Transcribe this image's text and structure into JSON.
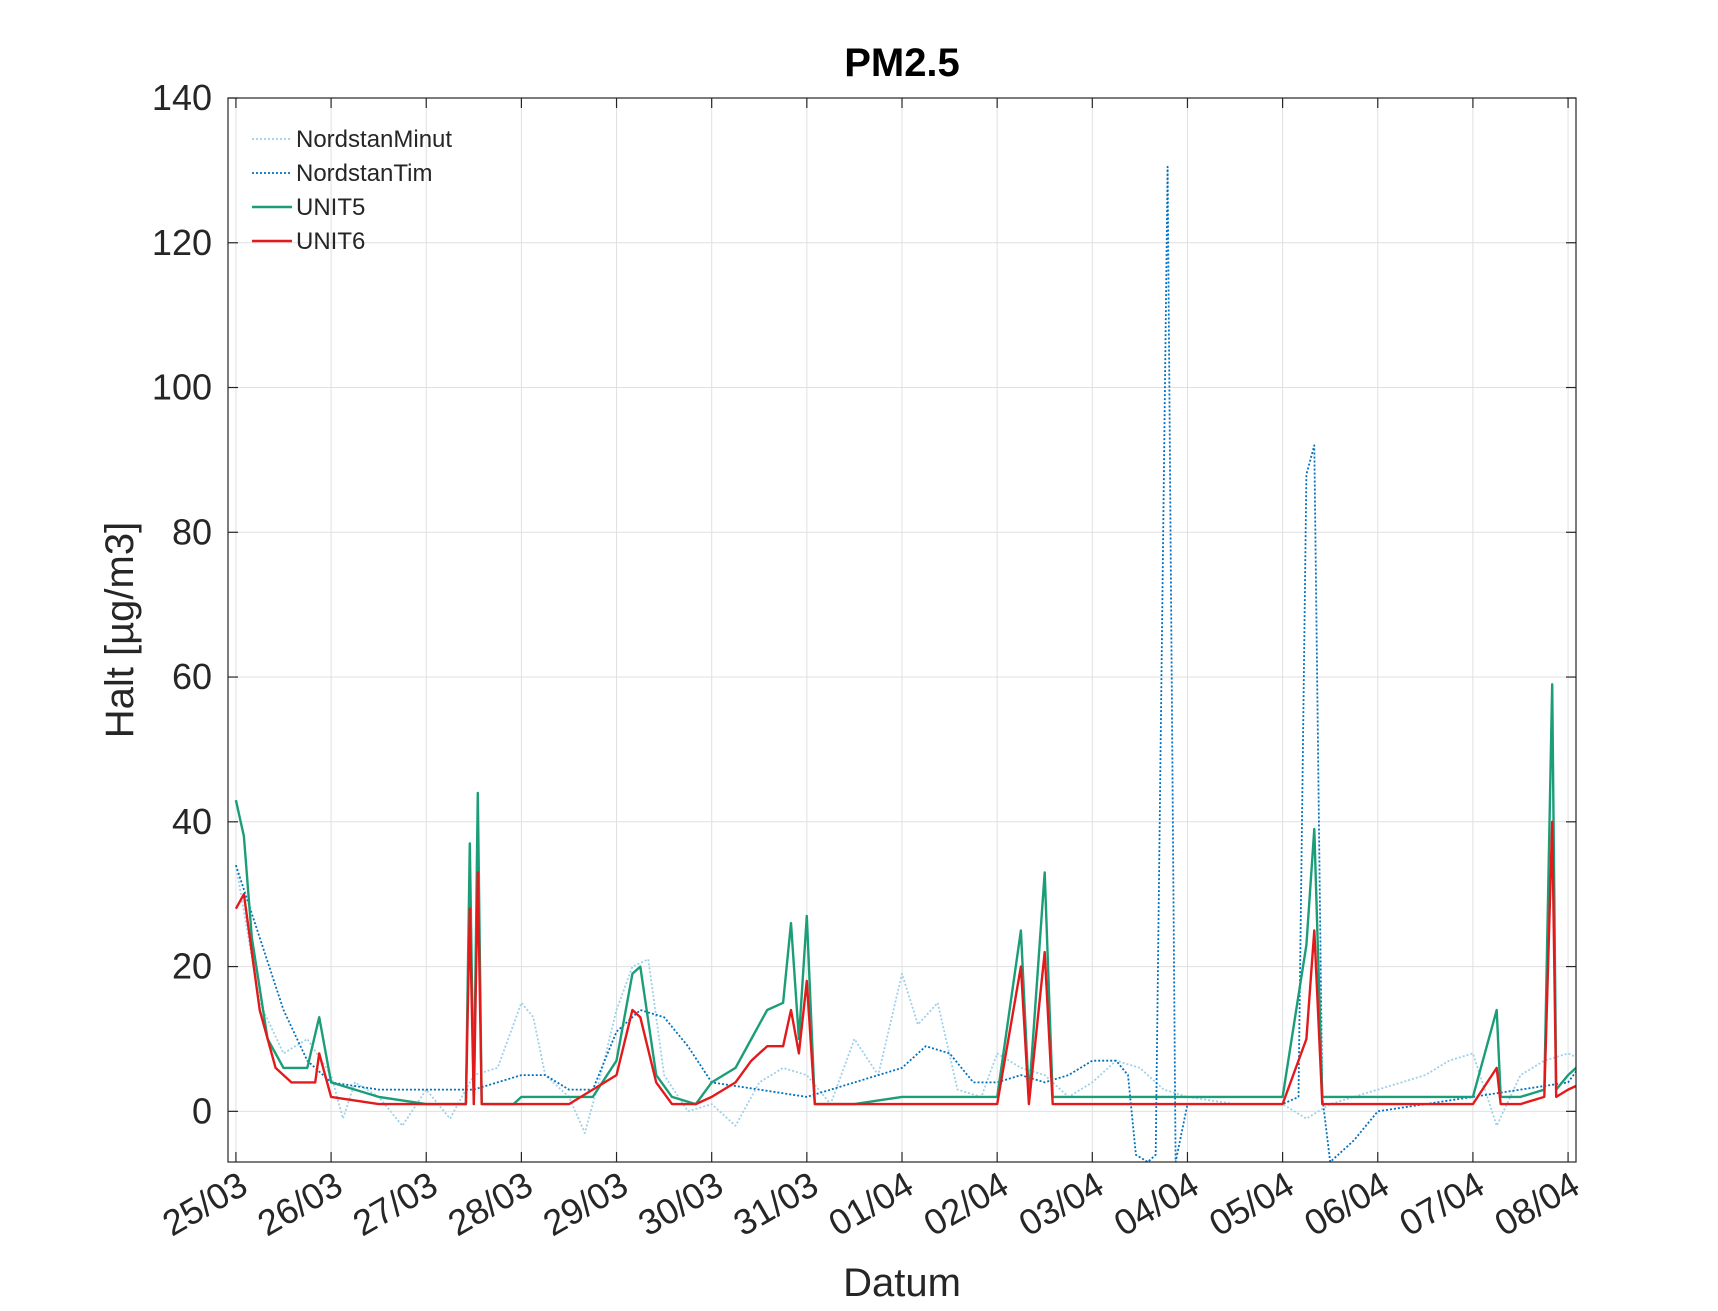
{
  "chart_data": {
    "type": "line",
    "title": "PM2.5",
    "xlabel": "Datum",
    "ylabel": "Halt [µg/m3]",
    "ylim": [
      -7,
      140
    ],
    "xlim": [
      "2020-03-24T22:00",
      "2020-04-08T02:00"
    ],
    "grid": true,
    "legend_position": "top-left",
    "yticks": [
      0,
      20,
      40,
      60,
      80,
      100,
      120,
      140
    ],
    "xtick_dates": [
      "2020-03-25",
      "2020-03-26",
      "2020-03-27",
      "2020-03-28",
      "2020-03-29",
      "2020-03-30",
      "2020-03-31",
      "2020-04-01",
      "2020-04-02",
      "2020-04-03",
      "2020-04-04",
      "2020-04-05",
      "2020-04-06",
      "2020-04-07",
      "2020-04-08"
    ],
    "xtick_labels": [
      "25/03",
      "26/03",
      "27/03",
      "28/03",
      "29/03",
      "30/03",
      "31/03",
      "01/04",
      "02/04",
      "03/04",
      "04/04",
      "05/04",
      "06/04",
      "07/04",
      "08/04"
    ],
    "series": [
      {
        "name": "NordstanMinut",
        "color": "#9fd0ea",
        "style": "dotted",
        "points": [
          [
            "2020-03-25T00:00",
            34
          ],
          [
            "2020-03-25T06:00",
            15
          ],
          [
            "2020-03-25T12:00",
            8
          ],
          [
            "2020-03-25T18:00",
            10
          ],
          [
            "2020-03-26T00:00",
            5
          ],
          [
            "2020-03-26T03:00",
            -1
          ],
          [
            "2020-03-26T06:00",
            4
          ],
          [
            "2020-03-26T12:00",
            2
          ],
          [
            "2020-03-26T18:00",
            -2
          ],
          [
            "2020-03-27T00:00",
            3
          ],
          [
            "2020-03-27T06:00",
            -1
          ],
          [
            "2020-03-27T12:00",
            5
          ],
          [
            "2020-03-27T18:00",
            6
          ],
          [
            "2020-03-28T00:00",
            15
          ],
          [
            "2020-03-28T03:00",
            13
          ],
          [
            "2020-03-28T06:00",
            5
          ],
          [
            "2020-03-28T12:00",
            2
          ],
          [
            "2020-03-28T16:00",
            -3
          ],
          [
            "2020-03-28T20:00",
            5
          ],
          [
            "2020-03-29T00:00",
            14
          ],
          [
            "2020-03-29T04:00",
            20
          ],
          [
            "2020-03-29T08:00",
            21
          ],
          [
            "2020-03-29T12:00",
            5
          ],
          [
            "2020-03-29T18:00",
            0
          ],
          [
            "2020-03-30T00:00",
            1
          ],
          [
            "2020-03-30T06:00",
            -2
          ],
          [
            "2020-03-30T12:00",
            4
          ],
          [
            "2020-03-30T18:00",
            6
          ],
          [
            "2020-03-31T00:00",
            5
          ],
          [
            "2020-03-31T06:00",
            1
          ],
          [
            "2020-03-31T12:00",
            10
          ],
          [
            "2020-03-31T18:00",
            5
          ],
          [
            "2020-04-01T00:00",
            19
          ],
          [
            "2020-04-01T04:00",
            12
          ],
          [
            "2020-04-01T09:00",
            15
          ],
          [
            "2020-04-01T14:00",
            3
          ],
          [
            "2020-04-01T20:00",
            2
          ],
          [
            "2020-04-02T00:00",
            8
          ],
          [
            "2020-04-02T06:00",
            6
          ],
          [
            "2020-04-02T12:00",
            5
          ],
          [
            "2020-04-02T18:00",
            2
          ],
          [
            "2020-04-03T00:00",
            4
          ],
          [
            "2020-04-03T06:00",
            7
          ],
          [
            "2020-04-03T12:00",
            6
          ],
          [
            "2020-04-03T18:00",
            3
          ],
          [
            "2020-04-04T00:00",
            2
          ],
          [
            "2020-04-04T12:00",
            1
          ],
          [
            "2020-04-05T00:00",
            1
          ],
          [
            "2020-04-05T06:00",
            -1
          ],
          [
            "2020-04-05T12:00",
            1
          ],
          [
            "2020-04-05T18:00",
            2
          ],
          [
            "2020-04-06T00:00",
            3
          ],
          [
            "2020-04-06T06:00",
            4
          ],
          [
            "2020-04-06T12:00",
            5
          ],
          [
            "2020-04-06T18:00",
            7
          ],
          [
            "2020-04-07T00:00",
            8
          ],
          [
            "2020-04-07T06:00",
            -2
          ],
          [
            "2020-04-07T12:00",
            5
          ],
          [
            "2020-04-07T18:00",
            7
          ],
          [
            "2020-04-08T00:00",
            8
          ],
          [
            "2020-04-08T04:00",
            7
          ]
        ]
      },
      {
        "name": "NordstanTim",
        "color": "#0072bd",
        "style": "dotted",
        "points": [
          [
            "2020-03-25T00:00",
            34
          ],
          [
            "2020-03-25T06:00",
            24
          ],
          [
            "2020-03-25T12:00",
            14
          ],
          [
            "2020-03-25T18:00",
            7
          ],
          [
            "2020-03-26T00:00",
            4
          ],
          [
            "2020-03-26T12:00",
            3
          ],
          [
            "2020-03-27T00:00",
            3
          ],
          [
            "2020-03-27T12:00",
            3
          ],
          [
            "2020-03-28T00:00",
            5
          ],
          [
            "2020-03-28T06:00",
            5
          ],
          [
            "2020-03-28T12:00",
            3
          ],
          [
            "2020-03-28T18:00",
            3
          ],
          [
            "2020-03-29T00:00",
            11
          ],
          [
            "2020-03-29T06:00",
            14
          ],
          [
            "2020-03-29T12:00",
            13
          ],
          [
            "2020-03-29T18:00",
            9
          ],
          [
            "2020-03-30T00:00",
            4
          ],
          [
            "2020-03-30T12:00",
            3
          ],
          [
            "2020-03-31T00:00",
            2
          ],
          [
            "2020-03-31T12:00",
            4
          ],
          [
            "2020-04-01T00:00",
            6
          ],
          [
            "2020-04-01T06:00",
            9
          ],
          [
            "2020-04-01T12:00",
            8
          ],
          [
            "2020-04-01T18:00",
            4
          ],
          [
            "2020-04-02T00:00",
            4
          ],
          [
            "2020-04-02T06:00",
            5
          ],
          [
            "2020-04-02T12:00",
            4
          ],
          [
            "2020-04-02T18:00",
            5
          ],
          [
            "2020-04-03T00:00",
            7
          ],
          [
            "2020-04-03T06:00",
            7
          ],
          [
            "2020-04-03T09:00",
            5
          ],
          [
            "2020-04-03T11:00",
            -6
          ],
          [
            "2020-04-03T14:00",
            -7
          ],
          [
            "2020-04-03T16:00",
            -6
          ],
          [
            "2020-04-03T19:00",
            130.5
          ],
          [
            "2020-04-03T21:00",
            -7
          ],
          [
            "2020-04-04T00:00",
            1
          ],
          [
            "2020-04-04T12:00",
            1
          ],
          [
            "2020-04-05T00:00",
            1
          ],
          [
            "2020-04-05T04:00",
            2
          ],
          [
            "2020-04-05T06:00",
            88
          ],
          [
            "2020-04-05T08:00",
            92
          ],
          [
            "2020-04-05T10:00",
            2
          ],
          [
            "2020-04-05T12:00",
            -7
          ],
          [
            "2020-04-05T18:00",
            -4
          ],
          [
            "2020-04-06T00:00",
            0
          ],
          [
            "2020-04-06T12:00",
            1
          ],
          [
            "2020-04-07T00:00",
            2
          ],
          [
            "2020-04-07T12:00",
            3
          ],
          [
            "2020-04-08T00:00",
            4
          ],
          [
            "2020-04-08T04:00",
            7
          ]
        ]
      },
      {
        "name": "UNIT5",
        "color": "#1b9e77",
        "style": "solid",
        "points": [
          [
            "2020-03-25T00:00",
            43
          ],
          [
            "2020-03-25T02:00",
            38
          ],
          [
            "2020-03-25T04:00",
            24
          ],
          [
            "2020-03-25T08:00",
            10
          ],
          [
            "2020-03-25T12:00",
            6
          ],
          [
            "2020-03-25T18:00",
            6
          ],
          [
            "2020-03-25T21:00",
            13
          ],
          [
            "2020-03-26T00:00",
            4
          ],
          [
            "2020-03-26T12:00",
            2
          ],
          [
            "2020-03-27T00:00",
            1
          ],
          [
            "2020-03-27T10:00",
            1
          ],
          [
            "2020-03-27T11:00",
            37
          ],
          [
            "2020-03-27T12:00",
            1
          ],
          [
            "2020-03-27T13:00",
            44
          ],
          [
            "2020-03-27T14:00",
            1
          ],
          [
            "2020-03-27T22:00",
            1
          ],
          [
            "2020-03-28T00:00",
            2
          ],
          [
            "2020-03-28T12:00",
            2
          ],
          [
            "2020-03-28T18:00",
            2
          ],
          [
            "2020-03-29T00:00",
            7
          ],
          [
            "2020-03-29T04:00",
            19
          ],
          [
            "2020-03-29T06:00",
            20
          ],
          [
            "2020-03-29T10:00",
            5
          ],
          [
            "2020-03-29T14:00",
            2
          ],
          [
            "2020-03-29T20:00",
            1
          ],
          [
            "2020-03-30T00:00",
            4
          ],
          [
            "2020-03-30T06:00",
            6
          ],
          [
            "2020-03-30T10:00",
            10
          ],
          [
            "2020-03-30T14:00",
            14
          ],
          [
            "2020-03-30T18:00",
            15
          ],
          [
            "2020-03-30T20:00",
            26
          ],
          [
            "2020-03-30T22:00",
            10
          ],
          [
            "2020-03-31T00:00",
            27
          ],
          [
            "2020-03-31T02:00",
            1
          ],
          [
            "2020-03-31T12:00",
            1
          ],
          [
            "2020-04-01T00:00",
            2
          ],
          [
            "2020-04-01T12:00",
            2
          ],
          [
            "2020-04-02T00:00",
            2
          ],
          [
            "2020-04-02T06:00",
            25
          ],
          [
            "2020-04-02T08:00",
            2
          ],
          [
            "2020-04-02T12:00",
            33
          ],
          [
            "2020-04-02T14:00",
            2
          ],
          [
            "2020-04-03T00:00",
            2
          ],
          [
            "2020-04-03T12:00",
            2
          ],
          [
            "2020-04-04T00:00",
            2
          ],
          [
            "2020-04-04T12:00",
            2
          ],
          [
            "2020-04-05T00:00",
            2
          ],
          [
            "2020-04-05T06:00",
            23
          ],
          [
            "2020-04-05T08:00",
            39
          ],
          [
            "2020-04-05T10:00",
            2
          ],
          [
            "2020-04-05T12:00",
            2
          ],
          [
            "2020-04-06T00:00",
            2
          ],
          [
            "2020-04-06T12:00",
            2
          ],
          [
            "2020-04-07T00:00",
            2
          ],
          [
            "2020-04-07T06:00",
            14
          ],
          [
            "2020-04-07T07:00",
            2
          ],
          [
            "2020-04-07T12:00",
            2
          ],
          [
            "2020-04-07T18:00",
            3
          ],
          [
            "2020-04-07T20:00",
            59
          ],
          [
            "2020-04-07T21:00",
            3
          ],
          [
            "2020-04-08T00:00",
            5
          ],
          [
            "2020-04-08T04:00",
            7
          ]
        ]
      },
      {
        "name": "UNIT6",
        "color": "#e31a1c",
        "style": "solid",
        "points": [
          [
            "2020-03-25T00:00",
            28
          ],
          [
            "2020-03-25T02:00",
            30
          ],
          [
            "2020-03-25T06:00",
            14
          ],
          [
            "2020-03-25T10:00",
            6
          ],
          [
            "2020-03-25T14:00",
            4
          ],
          [
            "2020-03-25T20:00",
            4
          ],
          [
            "2020-03-25T21:00",
            8
          ],
          [
            "2020-03-26T00:00",
            2
          ],
          [
            "2020-03-26T12:00",
            1
          ],
          [
            "2020-03-27T00:00",
            1
          ],
          [
            "2020-03-27T10:00",
            1
          ],
          [
            "2020-03-27T11:00",
            28
          ],
          [
            "2020-03-27T12:00",
            1
          ],
          [
            "2020-03-27T13:00",
            33
          ],
          [
            "2020-03-27T14:00",
            1
          ],
          [
            "2020-03-28T00:00",
            1
          ],
          [
            "2020-03-28T12:00",
            1
          ],
          [
            "2020-03-29T00:00",
            5
          ],
          [
            "2020-03-29T04:00",
            14
          ],
          [
            "2020-03-29T06:00",
            13
          ],
          [
            "2020-03-29T10:00",
            4
          ],
          [
            "2020-03-29T14:00",
            1
          ],
          [
            "2020-03-29T20:00",
            1
          ],
          [
            "2020-03-30T00:00",
            2
          ],
          [
            "2020-03-30T06:00",
            4
          ],
          [
            "2020-03-30T10:00",
            7
          ],
          [
            "2020-03-30T14:00",
            9
          ],
          [
            "2020-03-30T18:00",
            9
          ],
          [
            "2020-03-30T20:00",
            14
          ],
          [
            "2020-03-30T22:00",
            8
          ],
          [
            "2020-03-31T00:00",
            18
          ],
          [
            "2020-03-31T02:00",
            1
          ],
          [
            "2020-03-31T12:00",
            1
          ],
          [
            "2020-04-01T00:00",
            1
          ],
          [
            "2020-04-01T12:00",
            1
          ],
          [
            "2020-04-02T00:00",
            1
          ],
          [
            "2020-04-02T06:00",
            20
          ],
          [
            "2020-04-02T08:00",
            1
          ],
          [
            "2020-04-02T12:00",
            22
          ],
          [
            "2020-04-02T14:00",
            1
          ],
          [
            "2020-04-03T00:00",
            1
          ],
          [
            "2020-04-03T12:00",
            1
          ],
          [
            "2020-04-04T00:00",
            1
          ],
          [
            "2020-04-04T12:00",
            1
          ],
          [
            "2020-04-05T00:00",
            1
          ],
          [
            "2020-04-05T06:00",
            10
          ],
          [
            "2020-04-05T08:00",
            25
          ],
          [
            "2020-04-05T10:00",
            1
          ],
          [
            "2020-04-05T12:00",
            1
          ],
          [
            "2020-04-06T00:00",
            1
          ],
          [
            "2020-04-06T12:00",
            1
          ],
          [
            "2020-04-07T00:00",
            1
          ],
          [
            "2020-04-07T06:00",
            6
          ],
          [
            "2020-04-07T07:00",
            1
          ],
          [
            "2020-04-07T12:00",
            1
          ],
          [
            "2020-04-07T18:00",
            2
          ],
          [
            "2020-04-07T20:00",
            40
          ],
          [
            "2020-04-07T21:00",
            2
          ],
          [
            "2020-04-08T00:00",
            3
          ],
          [
            "2020-04-08T04:00",
            4
          ]
        ]
      }
    ]
  }
}
